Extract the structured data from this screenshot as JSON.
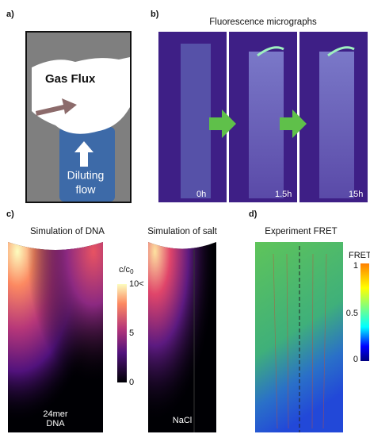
{
  "panel_a": {
    "label": "a)",
    "gas_flux": "Gas Flux",
    "diluting_flow": [
      "Diluting",
      "flow"
    ]
  },
  "panel_b": {
    "label": "b)",
    "title": "Fluorescence micrographs",
    "times": [
      "0h",
      "1.5h",
      "15h"
    ]
  },
  "panel_c": {
    "label": "c)",
    "titles": [
      "Simulation of DNA",
      "Simulation of salt"
    ],
    "colorbar_label": "c/c",
    "colorbar_label_sub": "0",
    "colorbar_ticks": [
      "10<",
      "5",
      "0"
    ],
    "captions": [
      [
        "24mer",
        "DNA"
      ],
      [
        "NaCl"
      ]
    ]
  },
  "panel_d": {
    "label": "d)",
    "title": "Experiment FRET",
    "colorbar_label": "FRET",
    "colorbar_ticks": [
      "1",
      "0.5",
      "0"
    ]
  }
}
